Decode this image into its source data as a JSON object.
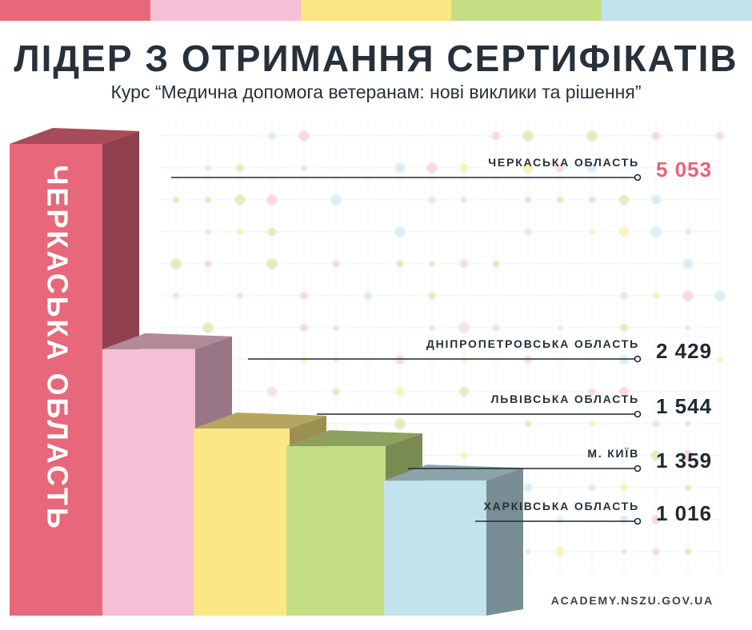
{
  "header": {
    "title": "ЛІДЕР З ОТРИМАННЯ СЕРТИФІКАТІВ",
    "subtitle": "Курс “Медична допомога ветеранам: нові виклики та рішення”"
  },
  "footer": {
    "url": "ACADEMY.NSZU.GOV.UA"
  },
  "colors": {
    "pink_red": "#e8687b",
    "light_pink": "#f6bfd6",
    "yellow": "#fbe784",
    "green": "#c5de86",
    "light_blue": "#c2e3ee",
    "text_dark": "#26313b",
    "accent_value": "#e6647a"
  },
  "chart_data": {
    "type": "bar",
    "style": "3d-stepped",
    "categories": [
      "ЧЕРКАСЬКА ОБЛАСТЬ",
      "ДНІПРОПЕТРОВСЬКА ОБЛАСТЬ",
      "ЛЬВІВСЬКА ОБЛАСТЬ",
      "М. КИЇВ",
      "ХАРКІВСЬКА ОБЛАСТЬ"
    ],
    "values": [
      5053,
      2429,
      1544,
      1359,
      1016
    ],
    "value_labels": [
      "5 053",
      "2 429",
      "1 544",
      "1 359",
      "1 016"
    ],
    "bar_label": "ЧЕРКАСЬКА ОБЛАСТЬ",
    "bar_colors": [
      "#e8687b",
      "#f6bfd6",
      "#fbe784",
      "#c5de86",
      "#c2e3ee"
    ],
    "grid": true,
    "legend": "none"
  }
}
